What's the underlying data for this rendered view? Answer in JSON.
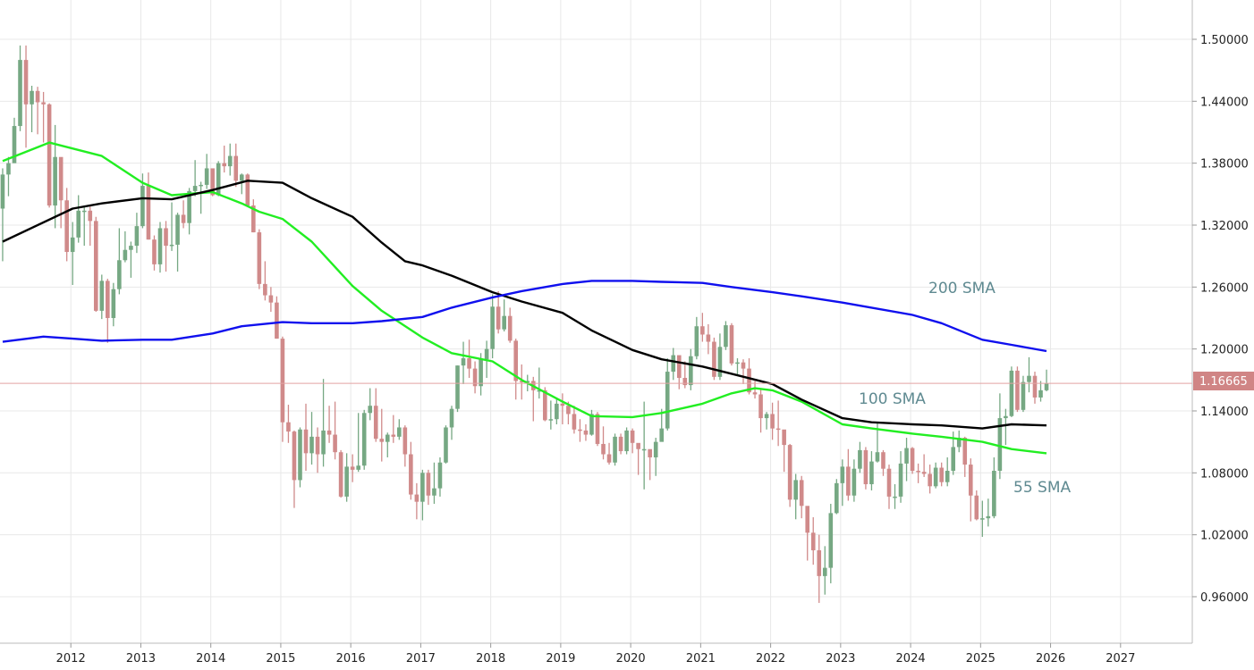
{
  "chart_data": {
    "type": "candlestick",
    "title": "",
    "xlabel": "",
    "ylabel": "",
    "start_month": "2011-01",
    "first_open": 1.336,
    "close": [
      1.369,
      1.38,
      1.416,
      1.48,
      1.437,
      1.45,
      1.439,
      1.437,
      1.339,
      1.386,
      1.344,
      1.294,
      1.308,
      1.334,
      1.334,
      1.324,
      1.237,
      1.266,
      1.23,
      1.258,
      1.286,
      1.296,
      1.3,
      1.319,
      1.358,
      1.306,
      1.282,
      1.317,
      1.3,
      1.301,
      1.33,
      1.322,
      1.353,
      1.358,
      1.359,
      1.375,
      1.349,
      1.38,
      1.377,
      1.387,
      1.363,
      1.369,
      1.339,
      1.313,
      1.263,
      1.252,
      1.245,
      1.21,
      1.129,
      1.12,
      1.073,
      1.122,
      1.099,
      1.115,
      1.098,
      1.121,
      1.117,
      1.1,
      1.057,
      1.086,
      1.083,
      1.087,
      1.138,
      1.145,
      1.113,
      1.11,
      1.117,
      1.115,
      1.124,
      1.098,
      1.059,
      1.052,
      1.08,
      1.058,
      1.065,
      1.09,
      1.124,
      1.142,
      1.184,
      1.191,
      1.181,
      1.164,
      1.19,
      1.2,
      1.241,
      1.219,
      1.232,
      1.208,
      1.169,
      1.168,
      1.169,
      1.16,
      1.16,
      1.131,
      1.132,
      1.147,
      1.145,
      1.137,
      1.122,
      1.121,
      1.117,
      1.137,
      1.108,
      1.098,
      1.09,
      1.115,
      1.101,
      1.121,
      1.109,
      1.103,
      1.103,
      1.095,
      1.11,
      1.123,
      1.178,
      1.194,
      1.172,
      1.165,
      1.193,
      1.222,
      1.214,
      1.207,
      1.173,
      1.202,
      1.223,
      1.186,
      1.187,
      1.181,
      1.158,
      1.156,
      1.133,
      1.137,
      1.123,
      1.122,
      1.107,
      1.054,
      1.073,
      1.048,
      1.022,
      1.005,
      0.98,
      0.988,
      1.041,
      1.07,
      1.086,
      1.058,
      1.084,
      1.102,
      1.069,
      1.091,
      1.1,
      1.084,
      1.057,
      1.057,
      1.089,
      1.104,
      1.082,
      1.081,
      1.079,
      1.067,
      1.085,
      1.071,
      1.082,
      1.105,
      1.114,
      1.088,
      1.058,
      1.035,
      1.036,
      1.038,
      1.082,
      1.133,
      1.135,
      1.179,
      1.141,
      1.168,
      1.174,
      1.153,
      1.16,
      1.16665
    ],
    "high": [
      1.375,
      1.386,
      1.424,
      1.494,
      1.494,
      1.455,
      1.454,
      1.449,
      1.438,
      1.417,
      1.382,
      1.356,
      1.323,
      1.349,
      1.339,
      1.338,
      1.328,
      1.272,
      1.268,
      1.264,
      1.317,
      1.314,
      1.304,
      1.332,
      1.37,
      1.371,
      1.31,
      1.323,
      1.324,
      1.342,
      1.332,
      1.344,
      1.356,
      1.383,
      1.362,
      1.389,
      1.374,
      1.382,
      1.397,
      1.399,
      1.399,
      1.37,
      1.37,
      1.345,
      1.316,
      1.285,
      1.26,
      1.251,
      1.212,
      1.146,
      1.121,
      1.124,
      1.147,
      1.139,
      1.124,
      1.171,
      1.145,
      1.149,
      1.102,
      1.099,
      1.098,
      1.138,
      1.141,
      1.162,
      1.162,
      1.142,
      1.119,
      1.136,
      1.132,
      1.126,
      1.11,
      1.07,
      1.083,
      1.083,
      1.09,
      1.095,
      1.126,
      1.145,
      1.184,
      1.207,
      1.209,
      1.188,
      1.196,
      1.208,
      1.253,
      1.256,
      1.248,
      1.24,
      1.21,
      1.185,
      1.175,
      1.173,
      1.182,
      1.163,
      1.15,
      1.153,
      1.157,
      1.149,
      1.145,
      1.132,
      1.127,
      1.141,
      1.139,
      1.125,
      1.109,
      1.118,
      1.118,
      1.124,
      1.123,
      1.105,
      1.149,
      1.102,
      1.114,
      1.142,
      1.191,
      1.201,
      1.189,
      1.188,
      1.2,
      1.231,
      1.235,
      1.224,
      1.211,
      1.215,
      1.227,
      1.225,
      1.191,
      1.19,
      1.191,
      1.169,
      1.161,
      1.139,
      1.148,
      1.15,
      1.118,
      1.108,
      1.079,
      1.077,
      1.037,
      1.037,
      1.02,
      1.009,
      1.05,
      1.074,
      1.093,
      1.103,
      1.093,
      1.11,
      1.105,
      1.101,
      1.128,
      1.102,
      1.088,
      1.069,
      1.101,
      1.114,
      1.105,
      1.089,
      1.098,
      1.088,
      1.09,
      1.09,
      1.095,
      1.12,
      1.121,
      1.115,
      1.094,
      1.063,
      1.053,
      1.055,
      1.095,
      1.157,
      1.142,
      1.183,
      1.183,
      1.174,
      1.192,
      1.178,
      1.169,
      1.18
    ],
    "low": [
      1.285,
      1.348,
      1.385,
      1.411,
      1.395,
      1.41,
      1.408,
      1.4,
      1.337,
      1.317,
      1.317,
      1.285,
      1.262,
      1.303,
      1.3,
      1.3,
      1.236,
      1.229,
      1.206,
      1.222,
      1.253,
      1.284,
      1.269,
      1.293,
      1.317,
      1.306,
      1.276,
      1.274,
      1.275,
      1.295,
      1.275,
      1.317,
      1.311,
      1.348,
      1.331,
      1.355,
      1.348,
      1.348,
      1.371,
      1.368,
      1.357,
      1.35,
      1.339,
      1.313,
      1.258,
      1.247,
      1.236,
      1.21,
      1.11,
      1.109,
      1.046,
      1.066,
      1.082,
      1.088,
      1.08,
      1.086,
      1.109,
      1.093,
      1.056,
      1.052,
      1.071,
      1.081,
      1.083,
      1.131,
      1.11,
      1.091,
      1.095,
      1.109,
      1.112,
      1.086,
      1.054,
      1.035,
      1.034,
      1.049,
      1.05,
      1.057,
      1.089,
      1.112,
      1.139,
      1.166,
      1.172,
      1.157,
      1.155,
      1.172,
      1.191,
      1.215,
      1.217,
      1.206,
      1.151,
      1.151,
      1.159,
      1.13,
      1.152,
      1.13,
      1.122,
      1.127,
      1.127,
      1.127,
      1.118,
      1.11,
      1.111,
      1.116,
      1.106,
      1.093,
      1.088,
      1.087,
      1.098,
      1.098,
      1.099,
      1.078,
      1.064,
      1.073,
      1.077,
      1.117,
      1.121,
      1.17,
      1.161,
      1.162,
      1.16,
      1.19,
      1.207,
      1.195,
      1.17,
      1.17,
      1.199,
      1.184,
      1.175,
      1.166,
      1.156,
      1.152,
      1.119,
      1.122,
      1.112,
      1.106,
      1.081,
      1.047,
      1.035,
      1.036,
      0.995,
      0.991,
      0.954,
      0.962,
      0.973,
      1.04,
      1.048,
      1.053,
      1.052,
      1.08,
      1.064,
      1.063,
      1.09,
      1.077,
      1.045,
      1.045,
      1.051,
      1.072,
      1.079,
      1.07,
      1.076,
      1.06,
      1.065,
      1.067,
      1.067,
      1.078,
      1.1,
      1.076,
      1.033,
      1.034,
      1.018,
      1.028,
      1.036,
      1.074,
      1.107,
      1.134,
      1.139,
      1.139,
      1.158,
      1.147,
      1.149,
      1.159
    ],
    "moving_averages": [
      {
        "name": "55 SMA",
        "color": "#22ee22",
        "points": [
          [
            "2011-01",
            1.382
          ],
          [
            "2011-09",
            1.4
          ],
          [
            "2012-06",
            1.387
          ],
          [
            "2013-01",
            1.361
          ],
          [
            "2013-06",
            1.349
          ],
          [
            "2014-01",
            1.352
          ],
          [
            "2014-06",
            1.341
          ],
          [
            "2014-09",
            1.333
          ],
          [
            "2015-01",
            1.326
          ],
          [
            "2015-06",
            1.304
          ],
          [
            "2016-01",
            1.261
          ],
          [
            "2016-06",
            1.237
          ],
          [
            "2017-01",
            1.211
          ],
          [
            "2017-06",
            1.196
          ],
          [
            "2018-01",
            1.188
          ],
          [
            "2018-06",
            1.17
          ],
          [
            "2019-01",
            1.149
          ],
          [
            "2019-06",
            1.135
          ],
          [
            "2020-01",
            1.134
          ],
          [
            "2020-06",
            1.138
          ],
          [
            "2021-01",
            1.147
          ],
          [
            "2021-06",
            1.157
          ],
          [
            "2021-10",
            1.162
          ],
          [
            "2022-01",
            1.16
          ],
          [
            "2022-06",
            1.149
          ],
          [
            "2023-01",
            1.127
          ],
          [
            "2023-06",
            1.123
          ],
          [
            "2024-01",
            1.118
          ],
          [
            "2024-06",
            1.115
          ],
          [
            "2025-01",
            1.11
          ],
          [
            "2025-06",
            1.103
          ],
          [
            "2025-12",
            1.099
          ]
        ]
      },
      {
        "name": "100 SMA",
        "color": "#000000",
        "points": [
          [
            "2011-01",
            1.304
          ],
          [
            "2012-01",
            1.336
          ],
          [
            "2012-06",
            1.341
          ],
          [
            "2013-01",
            1.346
          ],
          [
            "2013-06",
            1.345
          ],
          [
            "2014-01",
            1.354
          ],
          [
            "2014-07",
            1.363
          ],
          [
            "2015-01",
            1.361
          ],
          [
            "2015-06",
            1.346
          ],
          [
            "2016-01",
            1.328
          ],
          [
            "2016-06",
            1.303
          ],
          [
            "2016-10",
            1.285
          ],
          [
            "2017-01",
            1.281
          ],
          [
            "2017-06",
            1.271
          ],
          [
            "2018-01",
            1.255
          ],
          [
            "2018-06",
            1.246
          ],
          [
            "2019-01",
            1.235
          ],
          [
            "2019-06",
            1.218
          ],
          [
            "2020-01",
            1.199
          ],
          [
            "2020-06",
            1.19
          ],
          [
            "2021-01",
            1.183
          ],
          [
            "2021-06",
            1.176
          ],
          [
            "2022-01",
            1.166
          ],
          [
            "2022-06",
            1.151
          ],
          [
            "2023-01",
            1.133
          ],
          [
            "2023-06",
            1.129
          ],
          [
            "2024-01",
            1.127
          ],
          [
            "2024-06",
            1.126
          ],
          [
            "2025-01",
            1.123
          ],
          [
            "2025-06",
            1.127
          ],
          [
            "2025-12",
            1.126
          ]
        ]
      },
      {
        "name": "200 SMA",
        "color": "#1010ee",
        "points": [
          [
            "2011-01",
            1.207
          ],
          [
            "2011-08",
            1.212
          ],
          [
            "2012-01",
            1.21
          ],
          [
            "2012-06",
            1.208
          ],
          [
            "2013-01",
            1.209
          ],
          [
            "2013-06",
            1.209
          ],
          [
            "2014-01",
            1.215
          ],
          [
            "2014-06",
            1.222
          ],
          [
            "2015-01",
            1.226
          ],
          [
            "2015-06",
            1.225
          ],
          [
            "2016-01",
            1.225
          ],
          [
            "2016-06",
            1.227
          ],
          [
            "2017-01",
            1.231
          ],
          [
            "2017-06",
            1.24
          ],
          [
            "2018-01",
            1.25
          ],
          [
            "2018-06",
            1.256
          ],
          [
            "2019-01",
            1.263
          ],
          [
            "2019-06",
            1.266
          ],
          [
            "2020-01",
            1.266
          ],
          [
            "2020-06",
            1.265
          ],
          [
            "2021-01",
            1.264
          ],
          [
            "2021-06",
            1.26
          ],
          [
            "2022-01",
            1.255
          ],
          [
            "2022-06",
            1.251
          ],
          [
            "2023-01",
            1.245
          ],
          [
            "2023-06",
            1.24
          ],
          [
            "2024-01",
            1.233
          ],
          [
            "2024-06",
            1.225
          ],
          [
            "2025-01",
            1.209
          ],
          [
            "2025-06",
            1.204
          ],
          [
            "2025-12",
            1.198
          ]
        ]
      }
    ],
    "sma_labels": [
      "200 SMA",
      "100 SMA",
      "55 SMA"
    ],
    "x_ticks": [
      "2012",
      "2013",
      "2014",
      "2015",
      "2016",
      "2017",
      "2018",
      "2019",
      "2020",
      "2021",
      "2022",
      "2023",
      "2024",
      "2025",
      "2026",
      "2027"
    ],
    "y_ticks": [
      "1.50000",
      "1.44000",
      "1.38000",
      "1.32000",
      "1.26000",
      "1.20000",
      "1.14000",
      "1.08000",
      "1.02000",
      "0.96000"
    ],
    "ylim": [
      0.915,
      1.538
    ],
    "current_price": "1.16665",
    "grid": true,
    "colors": {
      "bull": "#76a883",
      "bear": "#d08a8a",
      "price_line": "#e3a3a3",
      "price_tag": "#d08585",
      "grid": "#e8e8e8",
      "label": "#5f8a91"
    }
  }
}
